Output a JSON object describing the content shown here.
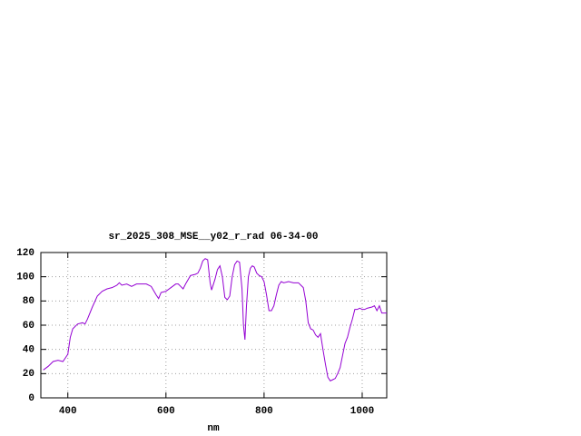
{
  "chart_data": {
    "type": "line",
    "title": "sr_2025_308_MSE__y02_r_rad 06-34-00",
    "x_label": "nm",
    "x": [
      350,
      360,
      370,
      380,
      390,
      400,
      405,
      410,
      420,
      430,
      435,
      440,
      450,
      460,
      470,
      480,
      490,
      500,
      505,
      510,
      520,
      530,
      540,
      550,
      560,
      570,
      580,
      585,
      590,
      600,
      610,
      620,
      625,
      630,
      635,
      640,
      650,
      660,
      665,
      670,
      675,
      680,
      685,
      690,
      693,
      700,
      705,
      710,
      715,
      720,
      725,
      730,
      735,
      740,
      745,
      750,
      755,
      758,
      761,
      764,
      768,
      772,
      776,
      780,
      785,
      790,
      795,
      800,
      805,
      810,
      815,
      820,
      825,
      830,
      835,
      840,
      850,
      860,
      870,
      875,
      880,
      885,
      890,
      895,
      900,
      905,
      910,
      915,
      920,
      925,
      930,
      935,
      940,
      945,
      950,
      955,
      960,
      965,
      970,
      975,
      980,
      985,
      990,
      995,
      1000,
      1005,
      1010,
      1020,
      1025,
      1030,
      1035,
      1040,
      1050
    ],
    "values": [
      23,
      26,
      30,
      31,
      30,
      36,
      50,
      57,
      61,
      62,
      61,
      65,
      75,
      84,
      88,
      90,
      91,
      93,
      95,
      93,
      94,
      92,
      94,
      94,
      94,
      92,
      85,
      82,
      87,
      88,
      91,
      94,
      94,
      92,
      90,
      94,
      101,
      102,
      103,
      107,
      113,
      115,
      114,
      95,
      89,
      98,
      106,
      109,
      100,
      83,
      81,
      84,
      100,
      110,
      113,
      112,
      90,
      60,
      48,
      75,
      100,
      107,
      109,
      108,
      103,
      101,
      100,
      96,
      85,
      72,
      72,
      76,
      85,
      93,
      96,
      95,
      96,
      95,
      95,
      93,
      91,
      80,
      62,
      57,
      56,
      52,
      50,
      53,
      40,
      28,
      17,
      14,
      15,
      16,
      20,
      25,
      35,
      45,
      50,
      58,
      65,
      73,
      73,
      74,
      73,
      73,
      74,
      75,
      76,
      72,
      76,
      70,
      70
    ],
    "color": "#9400d3",
    "xlim": [
      345,
      1050
    ],
    "ylim": [
      0,
      120
    ],
    "xticks": [
      400,
      600,
      800,
      1000
    ],
    "yticks": [
      0,
      20,
      40,
      60,
      80,
      100,
      120
    ],
    "grid": true
  }
}
